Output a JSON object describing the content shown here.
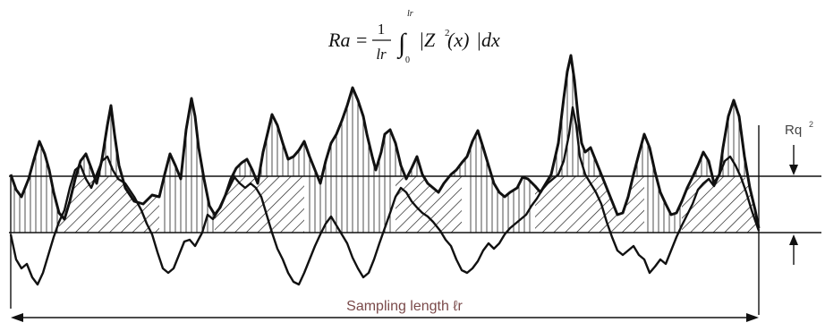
{
  "formula": {
    "lhs": "Ra",
    "equals": "=",
    "numerator": "1",
    "denominator": "lr",
    "upper_limit": "lr",
    "lower_limit": "0",
    "integrand": "|Z",
    "superscript": "2",
    "argument": "(x)",
    "differential": "|dx"
  },
  "labels": {
    "rq": "Rq",
    "rq_superscript": "2",
    "sampling_length": "Sampling length ℓr"
  },
  "colors": {
    "line": "#111111",
    "label": "#555555",
    "sampling_text": "#7a4a4a"
  },
  "icons": {
    "arrow_down": "arrow-down-icon",
    "arrow_up": "arrow-up-icon",
    "dimension_arrow": "double-arrow-icon"
  }
}
